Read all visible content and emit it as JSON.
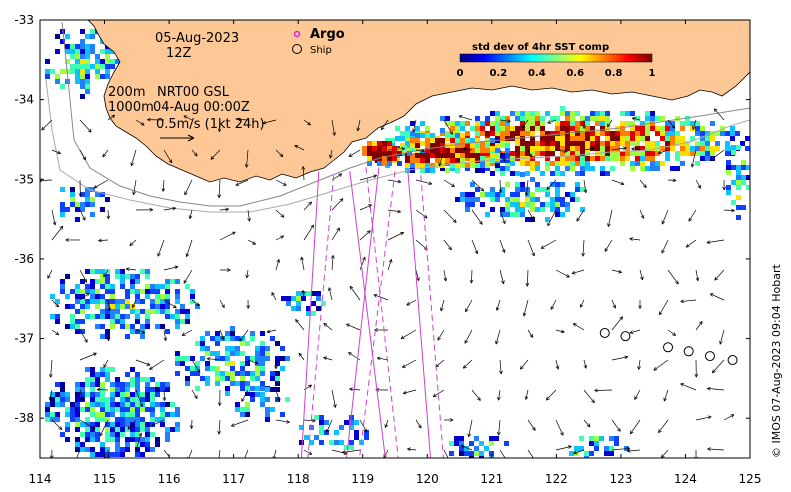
{
  "map": {
    "timestamp_date": "05-Aug-2023",
    "timestamp_hour": "12Z",
    "contour_label_1": "200m",
    "contour_label_2": "1000m",
    "product_line_1": "NRT00 GSL",
    "product_line_2": "04-Aug 00:00Z",
    "velocity_scale": "0.5m/s (1kt 24h)",
    "credit": "© IMOS 07-Aug-2023 09:04 Hobart",
    "x_axis": {
      "ticks": [
        "114",
        "115",
        "116",
        "117",
        "118",
        "119",
        "120",
        "121",
        "122",
        "123",
        "124",
        "125"
      ],
      "range": [
        114,
        125
      ]
    },
    "y_axis": {
      "ticks": [
        "-33",
        "-34",
        "-35",
        "-36",
        "-37",
        "-38"
      ],
      "range": [
        -38.5,
        -33
      ]
    }
  },
  "legend": {
    "argo_label": "Argo",
    "ship_label": "Ship",
    "argo_color": "#e020e0",
    "colorbar_title": "std dev of 4hr SST comp",
    "colorbar_ticks": [
      "0",
      "0.2",
      "0.4",
      "0.6",
      "0.8",
      "1"
    ],
    "colorbar_stops": [
      "#000080",
      "#0000ff",
      "#0080ff",
      "#00ffff",
      "#80ff80",
      "#ffff00",
      "#ff8000",
      "#ff0000",
      "#800000"
    ]
  },
  "colors": {
    "land": "#fdc895",
    "argo_track": "#d040d0"
  },
  "ship_positions": [
    [
      122.75,
      -36.93
    ],
    [
      123.07,
      -36.97
    ],
    [
      123.73,
      -37.11
    ],
    [
      124.05,
      -37.16
    ],
    [
      124.38,
      -37.22
    ],
    [
      124.73,
      -37.27
    ]
  ],
  "argo_tracks": [
    [
      [
        118.32,
        -34.9
      ],
      [
        118.05,
        -38.5
      ]
    ],
    [
      [
        118.55,
        -34.95
      ],
      [
        118.15,
        -38.5
      ]
    ],
    [
      [
        118.8,
        -34.9
      ],
      [
        119.35,
        -38.5
      ]
    ],
    [
      [
        119.05,
        -34.85
      ],
      [
        119.55,
        -38.5
      ]
    ],
    [
      [
        119.25,
        -34.85
      ],
      [
        118.75,
        -38.5
      ]
    ],
    [
      [
        119.5,
        -34.9
      ],
      [
        118.95,
        -38.5
      ]
    ],
    [
      [
        119.7,
        -34.9
      ],
      [
        120.05,
        -38.5
      ]
    ],
    [
      [
        119.9,
        -34.95
      ],
      [
        120.25,
        -38.5
      ]
    ]
  ]
}
